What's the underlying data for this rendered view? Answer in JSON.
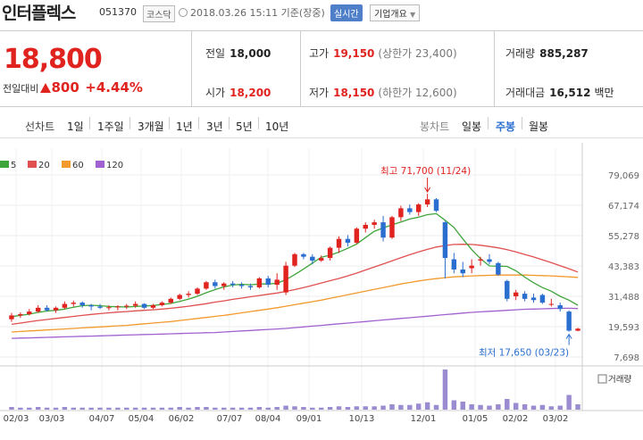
{
  "header": {
    "name": "인터플렉스",
    "code": "051370",
    "market": "코스닥",
    "datetime": "2018.03.26 15:11 기준(장중)",
    "realtime": "실시간",
    "company_info": "기업개요"
  },
  "quote": {
    "price": "18,800",
    "change_label": "전일대비",
    "change_value": "800",
    "change_pct": "+4.44%",
    "prev_label": "전일",
    "prev_value": "18,000",
    "high_label": "고가",
    "high_value": "19,150",
    "upper_limit": "(상한가 23,400)",
    "volume_label": "거래량",
    "volume_value": "885,287",
    "open_label": "시가",
    "open_value": "18,200",
    "low_label": "저가",
    "low_value": "18,150",
    "lower_limit": "(하한가 12,600)",
    "amount_label": "거래대금",
    "amount_value": "16,512",
    "amount_unit": "백만"
  },
  "tabs": {
    "line_chart": "선차트",
    "periods": [
      "1일",
      "1주일",
      "3개월",
      "1년",
      "3년",
      "5년",
      "10년"
    ],
    "candle_chart": "봉차트",
    "candles": [
      "일봉",
      "주봉",
      "월봉"
    ],
    "active_candle": "주봉"
  },
  "colors": {
    "up": "#e0231f",
    "down": "#2a6ed0",
    "ma5": "#3ea53a",
    "ma20": "#e05050",
    "ma60": "#f29a2e",
    "ma120": "#a062d0",
    "volume": "#9b8bd0"
  },
  "chart_data": {
    "type": "candlestick",
    "title": "",
    "legend": [
      {
        "label": "5",
        "color": "#3ea53a"
      },
      {
        "label": "20",
        "color": "#e05050"
      },
      {
        "label": "60",
        "color": "#f29a2e"
      },
      {
        "label": "120",
        "color": "#a062d0"
      }
    ],
    "y_ticks": [
      "79,069",
      "67,174",
      "55,278",
      "43,383",
      "31,488",
      "19,593",
      "7,698"
    ],
    "y_tick_values": [
      79069,
      67174,
      55278,
      43383,
      31488,
      19593,
      7698
    ],
    "ylim": [
      7698,
      79069
    ],
    "x_ticks": [
      "02/03",
      "03/03",
      "04/07",
      "05/04",
      "06/02",
      "07/07",
      "08/04",
      "09/01",
      "10/13",
      "12/01",
      "01/05",
      "02/02",
      "03/02"
    ],
    "annotations": {
      "high": "최고 71,700 (11/24)",
      "high_value": 71700,
      "low": "최저 17,650 (03/23)",
      "low_value": 17650
    },
    "volume_label": "거래량",
    "candles": [
      {
        "o": 22500,
        "h": 25000,
        "l": 21500,
        "c": 24000
      },
      {
        "o": 24000,
        "h": 25200,
        "l": 23000,
        "c": 24500
      },
      {
        "o": 24500,
        "h": 26500,
        "l": 24000,
        "c": 25500
      },
      {
        "o": 25500,
        "h": 28000,
        "l": 25000,
        "c": 27000
      },
      {
        "o": 27000,
        "h": 28000,
        "l": 25500,
        "c": 26000
      },
      {
        "o": 26000,
        "h": 27500,
        "l": 25000,
        "c": 27000
      },
      {
        "o": 27000,
        "h": 29500,
        "l": 26500,
        "c": 28500
      },
      {
        "o": 28500,
        "h": 29800,
        "l": 27500,
        "c": 29000
      },
      {
        "o": 29000,
        "h": 29500,
        "l": 27000,
        "c": 28000
      },
      {
        "o": 28000,
        "h": 28500,
        "l": 26000,
        "c": 27500
      },
      {
        "o": 27500,
        "h": 28500,
        "l": 26500,
        "c": 27000
      },
      {
        "o": 27000,
        "h": 28000,
        "l": 26000,
        "c": 27200
      },
      {
        "o": 27200,
        "h": 28000,
        "l": 26000,
        "c": 27500
      },
      {
        "o": 27500,
        "h": 28500,
        "l": 26500,
        "c": 27800
      },
      {
        "o": 27800,
        "h": 29500,
        "l": 27000,
        "c": 28500
      },
      {
        "o": 28500,
        "h": 28800,
        "l": 26500,
        "c": 27000
      },
      {
        "o": 27000,
        "h": 28500,
        "l": 26500,
        "c": 28000
      },
      {
        "o": 28000,
        "h": 29500,
        "l": 27500,
        "c": 29000
      },
      {
        "o": 29000,
        "h": 31000,
        "l": 28500,
        "c": 30500
      },
      {
        "o": 30500,
        "h": 32500,
        "l": 30000,
        "c": 32000
      },
      {
        "o": 32000,
        "h": 33500,
        "l": 31000,
        "c": 32500
      },
      {
        "o": 32500,
        "h": 35000,
        "l": 32000,
        "c": 34500
      },
      {
        "o": 34500,
        "h": 37500,
        "l": 34000,
        "c": 37000
      },
      {
        "o": 37000,
        "h": 38000,
        "l": 34500,
        "c": 35500
      },
      {
        "o": 35500,
        "h": 37000,
        "l": 34000,
        "c": 36500
      },
      {
        "o": 36500,
        "h": 37500,
        "l": 35000,
        "c": 36000
      },
      {
        "o": 36000,
        "h": 37000,
        "l": 34500,
        "c": 35500
      },
      {
        "o": 35500,
        "h": 36500,
        "l": 34000,
        "c": 35000
      },
      {
        "o": 35000,
        "h": 39000,
        "l": 34500,
        "c": 38500
      },
      {
        "o": 38500,
        "h": 39500,
        "l": 35000,
        "c": 36000
      },
      {
        "o": 36000,
        "h": 40500,
        "l": 34000,
        "c": 38000
      },
      {
        "o": 33000,
        "h": 45000,
        "l": 32000,
        "c": 43500
      },
      {
        "o": 43500,
        "h": 48500,
        "l": 43000,
        "c": 48000
      },
      {
        "o": 48000,
        "h": 48500,
        "l": 46000,
        "c": 47000
      },
      {
        "o": 47000,
        "h": 48000,
        "l": 44000,
        "c": 45500
      },
      {
        "o": 45500,
        "h": 47500,
        "l": 45000,
        "c": 46500
      },
      {
        "o": 46500,
        "h": 51000,
        "l": 45500,
        "c": 50500
      },
      {
        "o": 50500,
        "h": 55000,
        "l": 48500,
        "c": 54000
      },
      {
        "o": 54000,
        "h": 55500,
        "l": 51000,
        "c": 52500
      },
      {
        "o": 52500,
        "h": 58500,
        "l": 52000,
        "c": 58000
      },
      {
        "o": 58000,
        "h": 60500,
        "l": 56500,
        "c": 59500
      },
      {
        "o": 59500,
        "h": 61500,
        "l": 58000,
        "c": 60500
      },
      {
        "o": 60500,
        "h": 63000,
        "l": 53000,
        "c": 54500
      },
      {
        "o": 54500,
        "h": 63000,
        "l": 54000,
        "c": 62500
      },
      {
        "o": 62500,
        "h": 67000,
        "l": 61000,
        "c": 66000
      },
      {
        "o": 66000,
        "h": 67500,
        "l": 63500,
        "c": 64500
      },
      {
        "o": 64500,
        "h": 68000,
        "l": 63000,
        "c": 67500
      },
      {
        "o": 67500,
        "h": 71700,
        "l": 66500,
        "c": 69500
      },
      {
        "o": 69500,
        "h": 70000,
        "l": 64500,
        "c": 65000
      },
      {
        "o": 60500,
        "h": 61000,
        "l": 38500,
        "c": 46500
      },
      {
        "o": 46000,
        "h": 48500,
        "l": 40500,
        "c": 42000
      },
      {
        "o": 42000,
        "h": 45000,
        "l": 39000,
        "c": 40500
      },
      {
        "o": 42500,
        "h": 46000,
        "l": 40500,
        "c": 43500
      },
      {
        "o": 45500,
        "h": 47000,
        "l": 43500,
        "c": 46000
      },
      {
        "o": 46000,
        "h": 48000,
        "l": 44000,
        "c": 45000
      },
      {
        "o": 44500,
        "h": 45000,
        "l": 39500,
        "c": 40000
      },
      {
        "o": 37500,
        "h": 38000,
        "l": 29500,
        "c": 30500
      },
      {
        "o": 31500,
        "h": 34000,
        "l": 30000,
        "c": 33000
      },
      {
        "o": 32500,
        "h": 33500,
        "l": 29500,
        "c": 30500
      },
      {
        "o": 31000,
        "h": 32500,
        "l": 29000,
        "c": 30000
      },
      {
        "o": 32000,
        "h": 32500,
        "l": 28500,
        "c": 29000
      },
      {
        "o": 28500,
        "h": 30500,
        "l": 27500,
        "c": 28500
      },
      {
        "o": 28000,
        "h": 29000,
        "l": 25500,
        "c": 26500
      },
      {
        "o": 25500,
        "h": 26000,
        "l": 17650,
        "c": 18000
      },
      {
        "o": 18000,
        "h": 19150,
        "l": 17800,
        "c": 18800
      }
    ],
    "ma5": [
      23500,
      24000,
      24500,
      25200,
      25700,
      26000,
      26500,
      27200,
      27800,
      28000,
      27800,
      27500,
      27400,
      27300,
      27500,
      27700,
      27900,
      28300,
      28700,
      29500,
      30400,
      31500,
      32900,
      34100,
      35200,
      35900,
      36200,
      36000,
      36300,
      36300,
      36600,
      38000,
      40000,
      42200,
      44500,
      46800,
      47600,
      48800,
      50300,
      52000,
      54500,
      57000,
      58300,
      59500,
      60600,
      61800,
      62500,
      63500,
      63900,
      61300,
      58500,
      54000,
      49800,
      46200,
      43400,
      43300,
      43200,
      41500,
      39000,
      36800,
      34900,
      33500,
      31500,
      30000,
      28000
    ],
    "ma20": [
      20500,
      21000,
      21500,
      22000,
      22400,
      22800,
      23200,
      23600,
      24000,
      24400,
      24700,
      25000,
      25300,
      25500,
      25800,
      26000,
      26200,
      26500,
      26800,
      27200,
      27600,
      28100,
      28600,
      29200,
      29700,
      30300,
      30800,
      31300,
      31800,
      32300,
      32800,
      33400,
      34100,
      34900,
      35800,
      36700,
      37600,
      38500,
      39500,
      40600,
      41800,
      43000,
      44200,
      45400,
      46600,
      47800,
      48900,
      49900,
      50800,
      51400,
      51800,
      51900,
      51800,
      51500,
      51000,
      50500,
      49800,
      48900,
      47900,
      46900,
      45800,
      44700,
      43500,
      42300,
      41000
    ],
    "ma60": [
      17500,
      17700,
      17900,
      18100,
      18300,
      18500,
      18700,
      18900,
      19100,
      19300,
      19500,
      19700,
      19900,
      20100,
      20400,
      20700,
      21000,
      21300,
      21600,
      22000,
      22400,
      22800,
      23200,
      23600,
      24000,
      24500,
      25000,
      25500,
      26000,
      26500,
      27000,
      27600,
      28200,
      28800,
      29400,
      30000,
      30700,
      31400,
      32100,
      32800,
      33500,
      34200,
      34900,
      35600,
      36300,
      36900,
      37500,
      38000,
      38400,
      38800,
      39100,
      39300,
      39500,
      39600,
      39700,
      39800,
      39800,
      39800,
      39800,
      39700,
      39600,
      39500,
      39300,
      39100,
      38900
    ],
    "ma120": [
      15000,
      15100,
      15200,
      15300,
      15400,
      15500,
      15600,
      15700,
      15800,
      15900,
      16000,
      16100,
      16200,
      16300,
      16400,
      16500,
      16600,
      16700,
      16800,
      16900,
      17000,
      17100,
      17200,
      17300,
      17500,
      17700,
      17900,
      18100,
      18300,
      18500,
      18700,
      18900,
      19200,
      19500,
      19800,
      20100,
      20400,
      20700,
      21000,
      21300,
      21600,
      21900,
      22200,
      22500,
      22800,
      23100,
      23400,
      23700,
      24000,
      24300,
      24600,
      24900,
      25200,
      25400,
      25600,
      25800,
      26000,
      26200,
      26400,
      26500,
      26600,
      26700,
      26800,
      26800,
      26700
    ],
    "volume": [
      4,
      3,
      3,
      4,
      3,
      3,
      4,
      3,
      3,
      3,
      3,
      3,
      3,
      3,
      3,
      3,
      3,
      3,
      3,
      4,
      3,
      4,
      4,
      3,
      3,
      3,
      3,
      3,
      4,
      3,
      4,
      6,
      5,
      4,
      3,
      3,
      4,
      5,
      4,
      5,
      5,
      5,
      6,
      8,
      7,
      7,
      9,
      11,
      7,
      60,
      14,
      12,
      8,
      7,
      6,
      8,
      16,
      10,
      8,
      6,
      7,
      5,
      6,
      22,
      8
    ]
  }
}
